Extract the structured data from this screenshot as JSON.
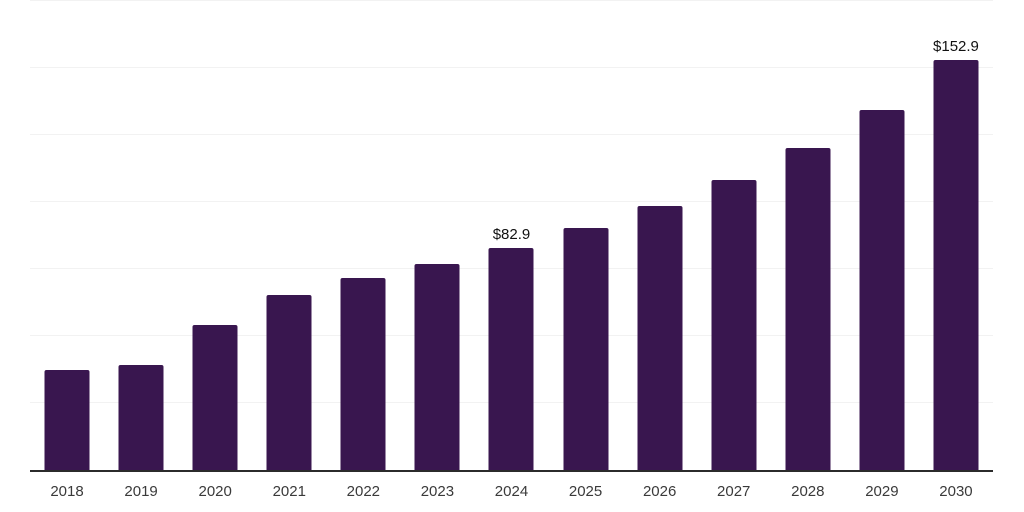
{
  "chart_data": {
    "type": "bar",
    "title": "",
    "xlabel": "",
    "ylabel": "",
    "categories": [
      "2018",
      "2019",
      "2020",
      "2021",
      "2022",
      "2023",
      "2024",
      "2025",
      "2026",
      "2027",
      "2028",
      "2029",
      "2030"
    ],
    "values": [
      37.3,
      39.2,
      54.1,
      65.3,
      71.5,
      76.9,
      82.9,
      90.2,
      98.5,
      108.2,
      120.0,
      134.3,
      152.9
    ],
    "value_labels": [
      "",
      "",
      "",
      "",
      "",
      "",
      "$82.9",
      "",
      "",
      "",
      "",
      "",
      "$152.9"
    ],
    "ylim": [
      0,
      175
    ],
    "gridline_step": 25,
    "grid": "horizontal",
    "legend_position": "none",
    "colors": {
      "bar": "#39164F",
      "gridline": "#F2F2F2",
      "axis_line": "#2B2B2B",
      "tick_label": "#3A3A3A",
      "value_label": "#111111",
      "background": "#FFFFFF"
    }
  }
}
